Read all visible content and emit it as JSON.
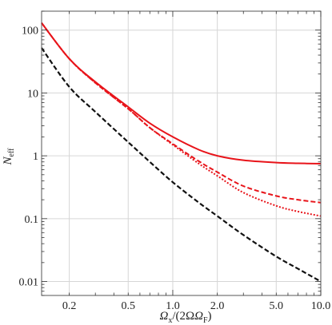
{
  "chart_data": {
    "type": "line",
    "title": "",
    "xlabel": {
      "main": "Ω",
      "sub": "x",
      "mid": "/(2Ω",
      "sub2": "F",
      "end": ")"
    },
    "ylabel": {
      "main": "N",
      "sub": "eff"
    },
    "xscale": "log",
    "yscale": "log",
    "xlim": [
      0.13,
      10.0
    ],
    "ylim": [
      0.006,
      200
    ],
    "grid": true,
    "legend": "none",
    "x_ticks": [
      {
        "value": 0.2,
        "label": "0.2"
      },
      {
        "value": 0.5,
        "label": "0.5"
      },
      {
        "value": 1.0,
        "label": "1.0"
      },
      {
        "value": 2.0,
        "label": "2.0"
      },
      {
        "value": 5.0,
        "label": "5.0"
      },
      {
        "value": 10.0,
        "label": "10.0"
      }
    ],
    "y_ticks": [
      {
        "value": 0.01,
        "label": "0.01"
      },
      {
        "value": 0.1,
        "label": "0.1"
      },
      {
        "value": 1,
        "label": "1"
      },
      {
        "value": 10,
        "label": "10"
      },
      {
        "value": 100,
        "label": "100"
      }
    ],
    "series": [
      {
        "style": "solid",
        "color": "#e8141a",
        "x": [
          0.13,
          0.2,
          0.3,
          0.5,
          0.7,
          1.0,
          1.5,
          2.0,
          3.0,
          5.0,
          7.0,
          10.0
        ],
        "y": [
          130,
          35,
          15,
          6.0,
          3.3,
          2.0,
          1.25,
          1.0,
          0.85,
          0.78,
          0.76,
          0.75
        ]
      },
      {
        "style": "dashed",
        "color": "#e8141a",
        "x": [
          0.13,
          0.2,
          0.3,
          0.5,
          0.7,
          1.0,
          1.5,
          2.0,
          3.0,
          5.0,
          7.0,
          10.0
        ],
        "y": [
          130,
          35,
          14.5,
          5.6,
          2.8,
          1.55,
          0.82,
          0.55,
          0.33,
          0.23,
          0.2,
          0.18
        ]
      },
      {
        "style": "dotted",
        "color": "#e8141a",
        "x": [
          0.13,
          0.2,
          0.3,
          0.5,
          0.7,
          1.0,
          1.5,
          2.0,
          3.0,
          5.0,
          7.0,
          10.0
        ],
        "y": [
          130,
          35,
          14.5,
          5.6,
          2.8,
          1.5,
          0.75,
          0.48,
          0.26,
          0.16,
          0.13,
          0.11
        ]
      },
      {
        "style": "dashed",
        "color": "#111111",
        "x": [
          0.13,
          0.2,
          0.3,
          0.5,
          0.7,
          1.0,
          1.5,
          2.0,
          3.0,
          5.0,
          7.0,
          10.0
        ],
        "y": [
          52,
          12.5,
          5.0,
          1.65,
          0.8,
          0.38,
          0.18,
          0.11,
          0.055,
          0.025,
          0.016,
          0.01
        ]
      }
    ]
  }
}
